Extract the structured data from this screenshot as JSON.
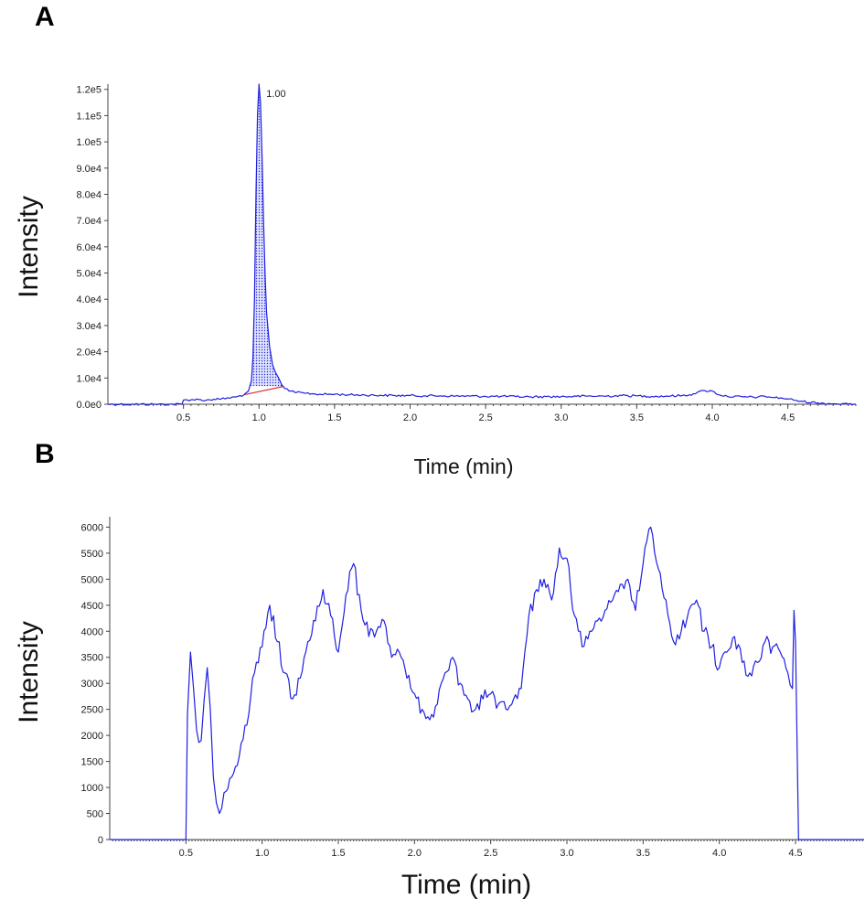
{
  "chart_data": [
    {
      "panel_label": "A",
      "type": "line",
      "xlabel": "Time (min)",
      "ylabel": "Intensity",
      "xlim": [
        0,
        4.95
      ],
      "ylim": [
        0,
        122000
      ],
      "x_ticks": [
        0.5,
        1.0,
        1.5,
        2.0,
        2.5,
        3.0,
        3.5,
        4.0,
        4.5
      ],
      "x_tick_labels": [
        "0.5",
        "1.0",
        "1.5",
        "2.0",
        "2.5",
        "3.0",
        "3.5",
        "4.0",
        "4.5"
      ],
      "y_ticks": [
        0,
        10000,
        20000,
        30000,
        40000,
        50000,
        60000,
        70000,
        80000,
        90000,
        100000,
        110000,
        120000
      ],
      "y_tick_labels": [
        "0.0e0",
        "1.0e4",
        "2.0e4",
        "3.0e4",
        "4.0e4",
        "5.0e4",
        "6.0e4",
        "7.0e4",
        "8.0e4",
        "9.0e4",
        "1.0e5",
        "1.1e5",
        "1.2e5"
      ],
      "line_color": "#1f1fe0",
      "baseline_color": "#e03030",
      "peak": {
        "x": 1.0,
        "y": 122000,
        "label": "1.00",
        "integration_start": 0.94,
        "integration_end": 1.16
      },
      "series": [
        {
          "x": [
            0.0,
            0.1,
            0.2,
            0.3,
            0.4,
            0.49,
            0.5,
            0.55,
            0.6,
            0.65,
            0.7,
            0.75,
            0.8,
            0.85,
            0.9,
            0.93,
            0.95,
            0.96,
            0.97,
            0.98,
            0.99,
            1.0,
            1.01,
            1.02,
            1.03,
            1.04,
            1.05,
            1.07,
            1.09,
            1.11,
            1.13,
            1.15,
            1.17,
            1.2,
            1.25,
            1.3,
            1.35,
            1.4,
            1.5,
            1.6,
            1.7,
            1.8,
            1.9,
            2.0,
            2.1,
            2.2,
            2.3,
            2.4,
            2.5,
            2.6,
            2.7,
            2.8,
            2.9,
            3.0,
            3.1,
            3.2,
            3.3,
            3.4,
            3.5,
            3.6,
            3.7,
            3.8,
            3.85,
            3.9,
            3.95,
            4.0,
            4.05,
            4.1,
            4.2,
            4.3,
            4.35,
            4.4,
            4.45,
            4.5,
            4.55,
            4.6,
            4.7,
            4.8,
            4.9,
            4.95
          ],
          "y": [
            0,
            0,
            0,
            0,
            0,
            0,
            1600,
            1700,
            1800,
            1500,
            1900,
            2000,
            2400,
            2800,
            3600,
            5000,
            9000,
            18000,
            40000,
            80000,
            110000,
            122000,
            115000,
            95000,
            70000,
            50000,
            35000,
            22000,
            15000,
            12000,
            10000,
            7500,
            6000,
            5000,
            4500,
            4200,
            4000,
            3800,
            3800,
            3600,
            3500,
            3400,
            3300,
            3300,
            3200,
            3200,
            3100,
            3100,
            3000,
            3000,
            2900,
            2800,
            2900,
            2900,
            3000,
            3100,
            3100,
            3300,
            3200,
            3000,
            3100,
            3300,
            3600,
            4500,
            5200,
            5000,
            3500,
            3000,
            2800,
            2700,
            3000,
            2600,
            2400,
            2000,
            1500,
            1000,
            500,
            200,
            0,
            0
          ]
        }
      ]
    },
    {
      "panel_label": "B",
      "type": "line",
      "xlabel": "Time (min)",
      "ylabel": "Intensity",
      "xlim": [
        0,
        4.95
      ],
      "ylim": [
        0,
        6200
      ],
      "x_ticks": [
        0.5,
        1.0,
        1.5,
        2.0,
        2.5,
        3.0,
        3.5,
        4.0,
        4.5
      ],
      "x_tick_labels": [
        "0.5",
        "1.0",
        "1.5",
        "2.0",
        "2.5",
        "3.0",
        "3.5",
        "4.0",
        "4.5"
      ],
      "y_ticks": [
        0,
        500,
        1000,
        1500,
        2000,
        2500,
        3000,
        3500,
        4000,
        4500,
        5000,
        5500,
        6000
      ],
      "y_tick_labels": [
        "0",
        "500",
        "1000",
        "1500",
        "2000",
        "2500",
        "3000",
        "3500",
        "4000",
        "4500",
        "5000",
        "5500",
        "6000"
      ],
      "line_color": "#1f1fe0",
      "series": [
        {
          "x": [
            0.0,
            0.5,
            0.51,
            0.53,
            0.55,
            0.57,
            0.6,
            0.62,
            0.64,
            0.66,
            0.68,
            0.7,
            0.72,
            0.75,
            0.8,
            0.85,
            0.9,
            0.95,
            1.0,
            1.05,
            1.1,
            1.15,
            1.2,
            1.25,
            1.3,
            1.35,
            1.4,
            1.45,
            1.5,
            1.55,
            1.6,
            1.65,
            1.7,
            1.75,
            1.8,
            1.85,
            1.9,
            1.95,
            2.0,
            2.05,
            2.1,
            2.15,
            2.2,
            2.25,
            2.3,
            2.35,
            2.4,
            2.45,
            2.5,
            2.55,
            2.6,
            2.65,
            2.7,
            2.75,
            2.8,
            2.85,
            2.9,
            2.95,
            3.0,
            3.05,
            3.1,
            3.15,
            3.2,
            3.25,
            3.3,
            3.35,
            3.4,
            3.45,
            3.5,
            3.55,
            3.6,
            3.65,
            3.7,
            3.75,
            3.8,
            3.85,
            3.9,
            3.95,
            4.0,
            4.05,
            4.1,
            4.15,
            4.2,
            4.25,
            4.3,
            4.35,
            4.4,
            4.45,
            4.48,
            4.49,
            4.5,
            4.52,
            4.6,
            4.95
          ],
          "y": [
            0,
            0,
            2400,
            3600,
            2900,
            2100,
            1900,
            2700,
            3300,
            2500,
            1200,
            700,
            500,
            900,
            1200,
            1600,
            2200,
            3200,
            3700,
            4500,
            3800,
            3200,
            2700,
            3100,
            3800,
            4200,
            4800,
            4300,
            3600,
            4700,
            5300,
            4400,
            3900,
            4000,
            4200,
            3500,
            3600,
            3100,
            2800,
            2500,
            2300,
            2600,
            3200,
            3500,
            3000,
            2700,
            2500,
            2700,
            2800,
            2600,
            2500,
            2700,
            2900,
            4300,
            4800,
            5000,
            4600,
            5600,
            5400,
            4300,
            3700,
            4000,
            4200,
            4400,
            4600,
            4900,
            5000,
            4400,
            5300,
            6000,
            5200,
            4600,
            3800,
            4000,
            4400,
            4600,
            4000,
            3700,
            3300,
            3600,
            3900,
            3400,
            3200,
            3400,
            3800,
            3700,
            3600,
            3200,
            2900,
            4400,
            3800,
            0,
            0,
            0
          ]
        }
      ]
    }
  ]
}
